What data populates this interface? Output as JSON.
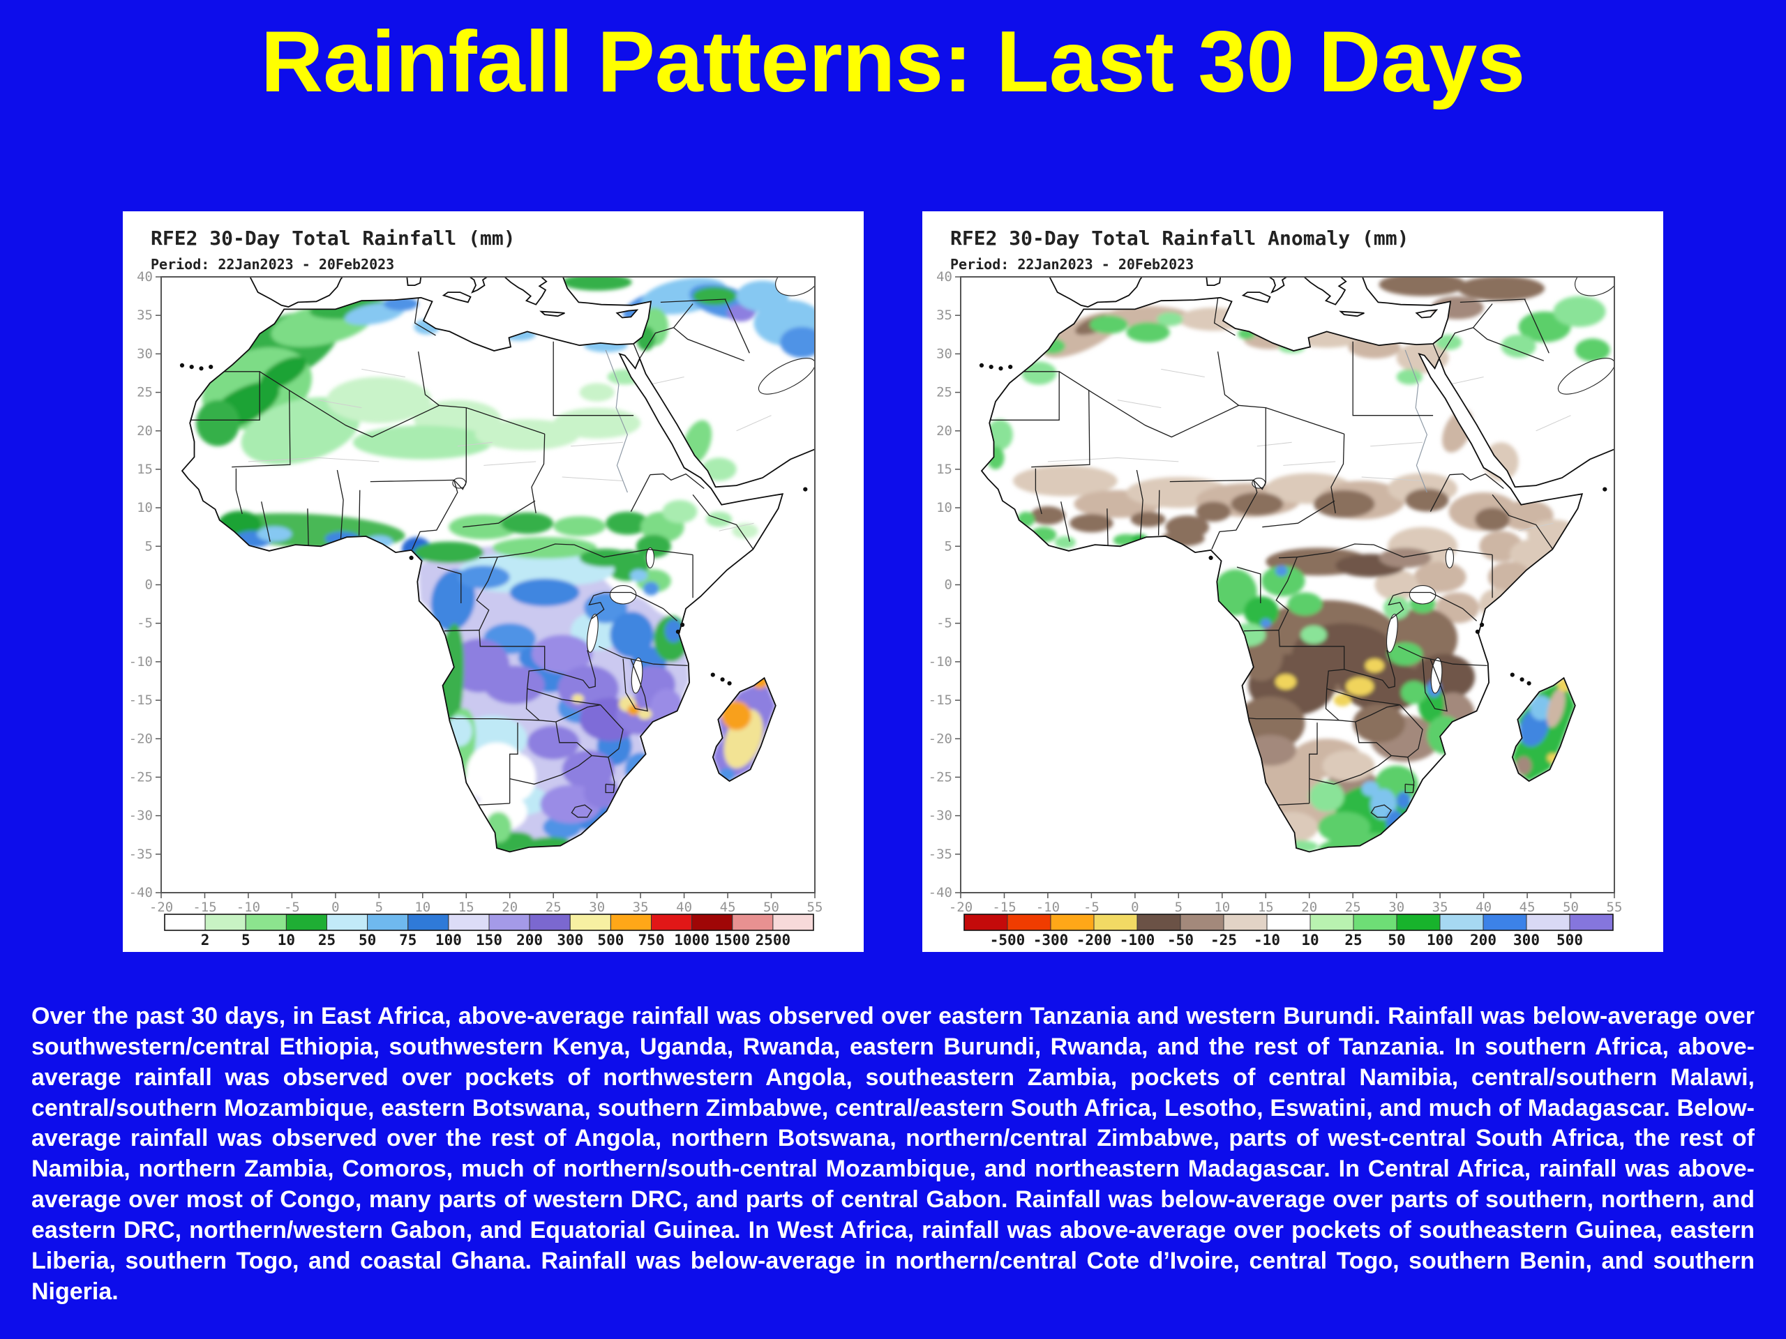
{
  "slide": {
    "title": "Rainfall Patterns: Last 30 Days",
    "background_color": "#0d0deb",
    "title_color": "#ffff00"
  },
  "maps": [
    {
      "title": "RFE2 30-Day Total Rainfall (mm)",
      "period": "Period: 22Jan2023 - 20Feb2023",
      "type": "choropleth-map",
      "region": "Africa",
      "lon_ticks": [
        "-20",
        "-15",
        "-10",
        "-5",
        "0",
        "5",
        "10",
        "15",
        "20",
        "25",
        "30",
        "35",
        "40",
        "45",
        "50",
        "55"
      ],
      "lat_ticks": [
        "40",
        "35",
        "30",
        "25",
        "20",
        "15",
        "10",
        "5",
        "0",
        "-5",
        "-10",
        "-15",
        "-20",
        "-25",
        "-30",
        "-35",
        "-40"
      ],
      "colorbar": {
        "colors": [
          "#ffffff",
          "#c8f3c4",
          "#8ce48e",
          "#1fae34",
          "#c2eaf8",
          "#6fb9ef",
          "#2f7ad8",
          "#dcdcf7",
          "#a49ae8",
          "#7b68d0",
          "#f7f0a2",
          "#ffa718",
          "#e11717",
          "#9f0606",
          "#e89191",
          "#f7dada"
        ],
        "labels": [
          "2",
          "5",
          "10",
          "25",
          "50",
          "75",
          "100",
          "150",
          "200",
          "300",
          "500",
          "750",
          "1000",
          "1500",
          "2500"
        ]
      }
    },
    {
      "title": "RFE2 30-Day Total Rainfall Anomaly (mm)",
      "period": "Period: 22Jan2023 - 20Feb2023",
      "type": "choropleth-map",
      "region": "Africa",
      "lon_ticks": [
        "-20",
        "-15",
        "-10",
        "-5",
        "0",
        "5",
        "10",
        "15",
        "20",
        "25",
        "30",
        "35",
        "40",
        "45",
        "50",
        "55"
      ],
      "lat_ticks": [
        "40",
        "35",
        "30",
        "25",
        "20",
        "15",
        "10",
        "5",
        "0",
        "-5",
        "-10",
        "-15",
        "-20",
        "-25",
        "-30",
        "-35",
        "-40"
      ],
      "colorbar": {
        "colors": [
          "#c40a0a",
          "#f03c00",
          "#ffa718",
          "#f2da64",
          "#6b5246",
          "#a3897b",
          "#e2d3c6",
          "#ffffff",
          "#b9f2b0",
          "#6ede76",
          "#18b32c",
          "#a6d8f2",
          "#3c82e8",
          "#d9d9f5",
          "#8576dd"
        ],
        "labels": [
          "-500",
          "-300",
          "-200",
          "-100",
          "-50",
          "-25",
          "-10",
          "10",
          "25",
          "50",
          "100",
          "200",
          "300",
          "500"
        ]
      }
    }
  ],
  "summary": "Over the past 30 days, in East Africa, above-average rainfall was observed over eastern Tanzania and western Burundi. Rainfall was below-average over southwestern/central Ethiopia, southwestern Kenya, Uganda, Rwanda, eastern Burundi, Rwanda, and the rest of Tanzania. In southern Africa, above-average rainfall was observed over pockets of northwestern Angola, southeastern Zambia, pockets of central Namibia, central/southern Malawi, central/southern Mozambique, eastern Botswana, southern Zimbabwe, central/eastern South Africa, Lesotho, Eswatini, and much of Madagascar. Below-average rainfall was observed over the rest of Angola, northern Botswana, northern/central Zimbabwe, parts of west-central South Africa, the rest of Namibia, northern Zambia, Comoros, much of northern/south-central Mozambique, and northeastern Madagascar. In Central Africa, rainfall was above-average over most of Congo, many parts of western DRC, and parts of central Gabon. Rainfall was below-average over parts of southern, northern, and eastern DRC, northern/western Gabon, and Equatorial Guinea. In West Africa, rainfall was above-average over pockets of southeastern Guinea, eastern Liberia, southern Togo, and coastal Ghana. Rainfall was below-average in northern/central Cote d’Ivoire, central Togo, southern Benin, and southern Nigeria."
}
